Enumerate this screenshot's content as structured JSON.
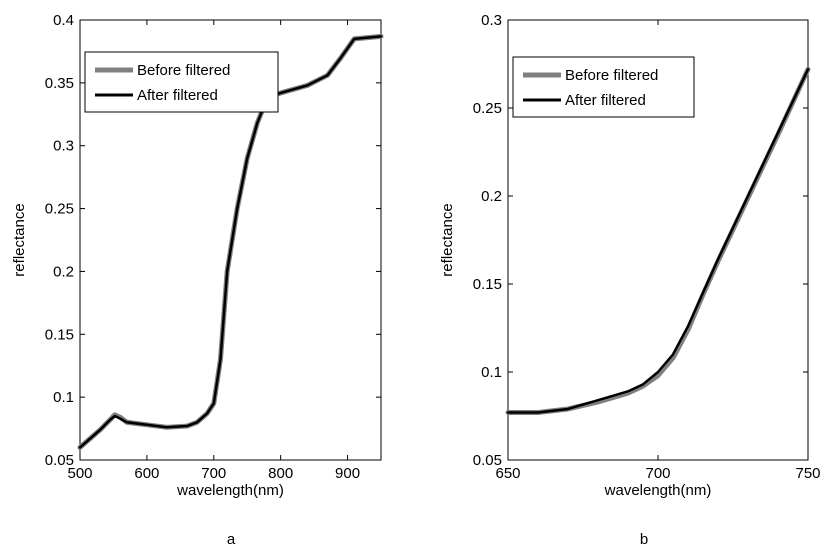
{
  "figure": {
    "panel_labels": [
      "a",
      "b"
    ]
  },
  "chart_data": [
    {
      "type": "line",
      "panel": "a",
      "xlabel": "wavelength(nm)",
      "ylabel": "reflectance",
      "xlim": [
        500,
        950
      ],
      "ylim": [
        0.05,
        0.4
      ],
      "xticks": [
        500,
        600,
        700,
        800,
        900
      ],
      "xtick_labels": [
        "500",
        "600",
        "700",
        "800",
        "900"
      ],
      "yticks": [
        0.05,
        0.1,
        0.15,
        0.2,
        0.25,
        0.3,
        0.35,
        0.4
      ],
      "ytick_labels": [
        "0.05",
        "0.1",
        "0.15",
        "0.2",
        "0.25",
        "0.3",
        "0.35",
        "0.4"
      ],
      "grid": false,
      "legend_position": "top-left",
      "series": [
        {
          "name": "Before filtered",
          "color": "#808080",
          "x": [
            500,
            515,
            530,
            545,
            552,
            560,
            570,
            600,
            630,
            660,
            675,
            690,
            700,
            710,
            720,
            735,
            750,
            765,
            780,
            800,
            840,
            870,
            890,
            910,
            930,
            950
          ],
          "y": [
            0.06,
            0.067,
            0.074,
            0.082,
            0.086,
            0.084,
            0.08,
            0.078,
            0.076,
            0.077,
            0.08,
            0.087,
            0.095,
            0.13,
            0.2,
            0.25,
            0.29,
            0.318,
            0.338,
            0.342,
            0.348,
            0.356,
            0.37,
            0.385,
            0.386,
            0.387
          ]
        },
        {
          "name": "After filtered",
          "color": "#000000",
          "x": [
            500,
            515,
            530,
            545,
            552,
            560,
            570,
            600,
            630,
            660,
            675,
            690,
            700,
            710,
            720,
            735,
            750,
            765,
            780,
            800,
            840,
            870,
            890,
            910,
            930,
            950
          ],
          "y": [
            0.06,
            0.067,
            0.074,
            0.082,
            0.085,
            0.083,
            0.08,
            0.078,
            0.076,
            0.077,
            0.08,
            0.087,
            0.095,
            0.13,
            0.2,
            0.25,
            0.29,
            0.318,
            0.338,
            0.342,
            0.348,
            0.356,
            0.37,
            0.385,
            0.386,
            0.387
          ]
        }
      ]
    },
    {
      "type": "line",
      "panel": "b",
      "xlabel": "wavelength(nm)",
      "ylabel": "reflectance",
      "xlim": [
        650,
        750
      ],
      "ylim": [
        0.05,
        0.3
      ],
      "xticks": [
        650,
        700,
        750
      ],
      "xtick_labels": [
        "650",
        "700",
        "750"
      ],
      "yticks": [
        0.05,
        0.1,
        0.15,
        0.2,
        0.25,
        0.3
      ],
      "ytick_labels": [
        "0.05",
        "0.1",
        "0.15",
        "0.2",
        "0.25",
        "0.3"
      ],
      "grid": false,
      "legend_position": "top-left",
      "series": [
        {
          "name": "Before filtered",
          "color": "#808080",
          "x": [
            650,
            660,
            670,
            680,
            690,
            695,
            700,
            705,
            710,
            715,
            720,
            730,
            740,
            750
          ],
          "y": [
            0.077,
            0.077,
            0.079,
            0.083,
            0.088,
            0.092,
            0.098,
            0.108,
            0.124,
            0.144,
            0.163,
            0.199,
            0.235,
            0.272
          ]
        },
        {
          "name": "After filtered",
          "color": "#000000",
          "x": [
            650,
            660,
            670,
            680,
            690,
            695,
            700,
            705,
            710,
            715,
            720,
            730,
            740,
            750
          ],
          "y": [
            0.077,
            0.077,
            0.079,
            0.084,
            0.089,
            0.093,
            0.1,
            0.11,
            0.126,
            0.145,
            0.164,
            0.2,
            0.236,
            0.272
          ]
        }
      ]
    }
  ]
}
